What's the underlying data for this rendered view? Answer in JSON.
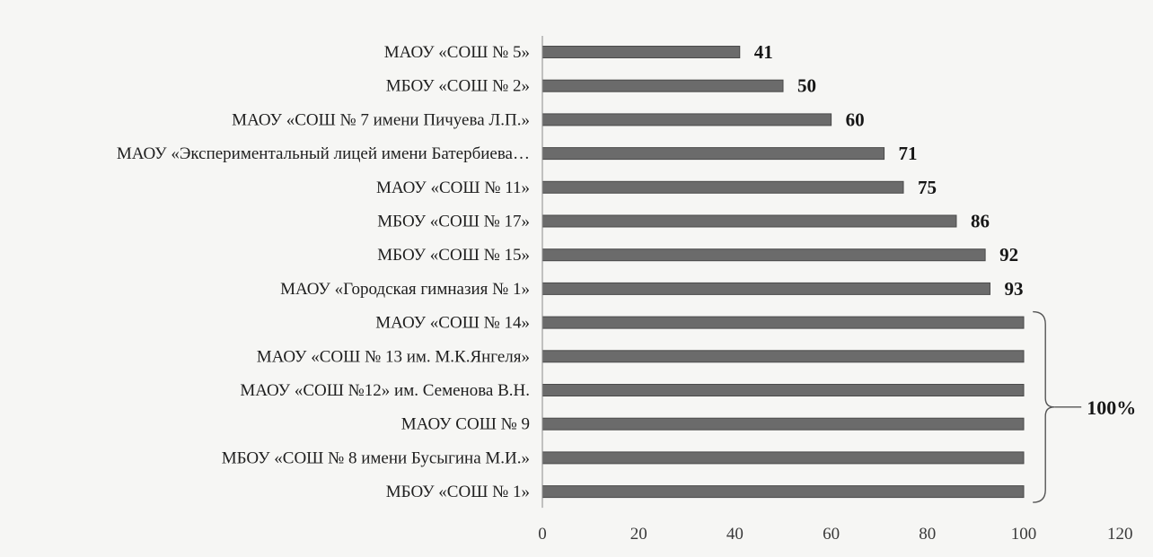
{
  "chart_data": {
    "type": "bar",
    "orientation": "horizontal",
    "categories": [
      "МАОУ «СОШ № 5»",
      "МБОУ «СОШ № 2»",
      "МАОУ «СОШ № 7 имени Пичуева Л.П.»",
      "МАОУ «Экспериментальный лицей имени Батербиева…",
      "МАОУ «СОШ № 11»",
      "МБОУ «СОШ № 17»",
      "МБОУ «СОШ № 15»",
      "МАОУ «Городская гимназия № 1»",
      "МАОУ «СОШ № 14»",
      "МАОУ «СОШ № 13 им. М.К.Янгеля»",
      "МАОУ «СОШ №12» им. Семенова В.Н.",
      "МАОУ СОШ № 9",
      "МБОУ «СОШ № 8 имени Бусыгина М.И.»",
      "МБОУ «СОШ № 1»"
    ],
    "values": [
      41,
      50,
      60,
      71,
      75,
      86,
      92,
      93,
      100,
      100,
      100,
      100,
      100,
      100
    ],
    "data_labels": [
      "41",
      "50",
      "60",
      "71",
      "75",
      "86",
      "92",
      "93",
      "",
      "",
      "",
      "",
      "",
      ""
    ],
    "xlim": [
      0,
      120
    ],
    "xticks": [
      0,
      20,
      40,
      60,
      80,
      100,
      120
    ],
    "grid": false,
    "legend": "none",
    "bar_color": "#6b6b6b",
    "annotations": [
      {
        "type": "brace",
        "from_index": 8,
        "to_index": 13,
        "text": "100%"
      }
    ]
  }
}
